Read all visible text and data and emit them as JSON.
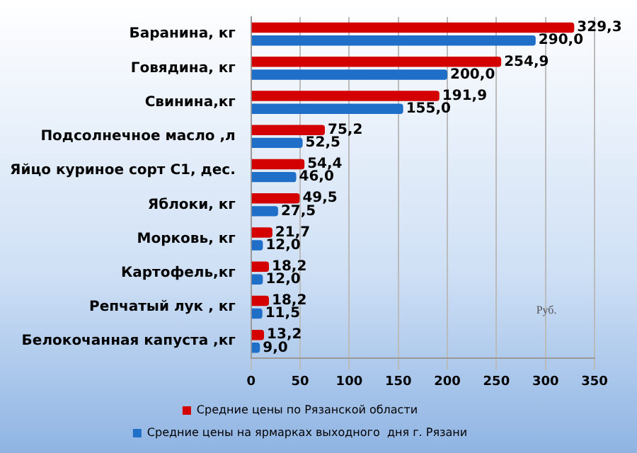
{
  "chart_data": {
    "type": "bar",
    "orientation": "horizontal",
    "categories": [
      "Баранина, кг",
      "Говядина, кг",
      "Свинина,кг",
      "Подсолнечное масло ,л",
      "Яйцо куриное сорт С1, дес.",
      "Яблоки, кг",
      "Морковь, кг",
      "Картофель,кг",
      "Репчатый лук , кг",
      "Белокочанная капуста ,кг"
    ],
    "series": [
      {
        "name": "Средние цены по Рязанской области",
        "color": "#d40000",
        "values": [
          329.3,
          254.9,
          191.9,
          75.2,
          54.4,
          49.5,
          21.7,
          18.2,
          18.2,
          13.2
        ],
        "value_labels": [
          "329,3",
          "254,9",
          "191,9",
          "75,2",
          "54,4",
          "49,5",
          "21,7",
          "18,2",
          "18,2",
          "13,2"
        ]
      },
      {
        "name": "Средние цены на ярмарках выходного  дня г. Рязани",
        "color": "#1f6fc8",
        "values": [
          290.0,
          200.0,
          155.0,
          52.5,
          46.0,
          27.5,
          12.0,
          12.0,
          11.5,
          9.0
        ],
        "value_labels": [
          "290,0",
          "200,0",
          "155,0",
          "52,5",
          "46,0",
          "27,5",
          "12,0",
          "12,0",
          "11,5",
          "9,0"
        ]
      }
    ],
    "xlim": [
      0,
      350
    ],
    "xticks": [
      0,
      50,
      100,
      150,
      200,
      250,
      300,
      350
    ],
    "grid": "x",
    "legend": "bottom",
    "annotations": [
      "Руб."
    ]
  }
}
